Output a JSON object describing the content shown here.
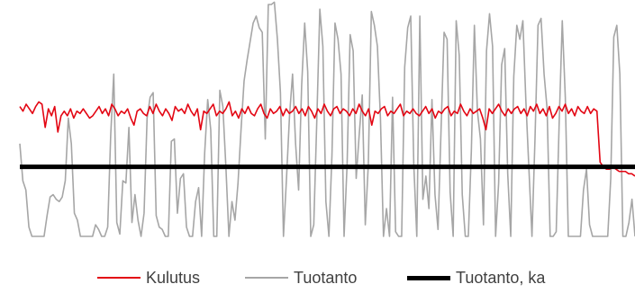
{
  "chart_data": {
    "type": "line",
    "title": "",
    "xlabel": "",
    "ylabel": "",
    "grid": false,
    "legend_position": "bottom",
    "ylim": [
      0,
      100
    ],
    "series": [
      {
        "name": "Kulutus",
        "color": "#e30613",
        "values": [
          56,
          54,
          57,
          55,
          53,
          56,
          58,
          57,
          47,
          55,
          52,
          56,
          45,
          52,
          54,
          52,
          55,
          51,
          54,
          53,
          55,
          53,
          51,
          52,
          54,
          56,
          53,
          55,
          52,
          57,
          55,
          52,
          54,
          53,
          55,
          51,
          48,
          54,
          55,
          53,
          52,
          56,
          53,
          57,
          54,
          52,
          55,
          53,
          50,
          56,
          54,
          55,
          53,
          57,
          54,
          52,
          55,
          46,
          54,
          53,
          55,
          57,
          52,
          54,
          53,
          55,
          58,
          52,
          54,
          51,
          55,
          53,
          56,
          53,
          52,
          55,
          57,
          53,
          51,
          55,
          53,
          54,
          56,
          52,
          55,
          53,
          54,
          56,
          53,
          55,
          52,
          56,
          54,
          51,
          55,
          53,
          57,
          54,
          52,
          55,
          56,
          53,
          55,
          54,
          52,
          55,
          53,
          57,
          54,
          52,
          55,
          48,
          54,
          53,
          55,
          56,
          52,
          54,
          53,
          55,
          57,
          52,
          54,
          53,
          55,
          53,
          52,
          54,
          56,
          53,
          55,
          51,
          54,
          53,
          55,
          56,
          52,
          54,
          53,
          57,
          54,
          52,
          55,
          53,
          54,
          55,
          51,
          46,
          55,
          53,
          55,
          57,
          54,
          52,
          55,
          53,
          55,
          56,
          53,
          55,
          52,
          56,
          54,
          57,
          53,
          55,
          52,
          56,
          51,
          53,
          56,
          54,
          57,
          53,
          55,
          52,
          56,
          54,
          53,
          56,
          53,
          55,
          54,
          32,
          30,
          29,
          29,
          30,
          29,
          28,
          28,
          28,
          27,
          27,
          26
        ]
      },
      {
        "name": "Tuotanto",
        "color": "#a6a6a6",
        "values": [
          40,
          24,
          20,
          4,
          0,
          0,
          0,
          0,
          0,
          9,
          17,
          18,
          16,
          15,
          17,
          24,
          51,
          40,
          10,
          7,
          0,
          0,
          0,
          0,
          0,
          5,
          3,
          0,
          0,
          4,
          44,
          70,
          6,
          1,
          24,
          23,
          47,
          6,
          18,
          7,
          0,
          10,
          51,
          60,
          62,
          9,
          4,
          3,
          0,
          0,
          41,
          42,
          10,
          25,
          27,
          4,
          0,
          0,
          15,
          21,
          0,
          36,
          59,
          46,
          0,
          0,
          63,
          56,
          30,
          0,
          15,
          7,
          23,
          46,
          67,
          76,
          84,
          92,
          95,
          90,
          88,
          42,
          100,
          100,
          101,
          85,
          62,
          0,
          25,
          52,
          70,
          40,
          20,
          65,
          92,
          71,
          0,
          5,
          50,
          98,
          82,
          15,
          0,
          35,
          92,
          85,
          70,
          0,
          31,
          87,
          80,
          25,
          44,
          61,
          5,
          31,
          97,
          91,
          82,
          51,
          0,
          12,
          0,
          60,
          2,
          0,
          0,
          73,
          90,
          95,
          31,
          0,
          95,
          16,
          26,
          12,
          59,
          18,
          3,
          46,
          88,
          85,
          19,
          0,
          93,
          78,
          18,
          0,
          0,
          37,
          91,
          54,
          42,
          5,
          80,
          96,
          82,
          0,
          23,
          74,
          81,
          27,
          0,
          69,
          91,
          85,
          93,
          58,
          29,
          0,
          42,
          91,
          94,
          70,
          55,
          0,
          0,
          2,
          50,
          93,
          60,
          0,
          0,
          0,
          0,
          0,
          20,
          29,
          5,
          0,
          0,
          0,
          0,
          0,
          0,
          25,
          86,
          91,
          70,
          0,
          0,
          6,
          16,
          0
        ]
      },
      {
        "name": "Tuotanto, ka",
        "color": "#000000",
        "values": [
          30,
          30,
          30,
          30,
          30,
          30,
          30,
          30,
          30,
          30,
          30,
          30,
          30,
          30,
          30,
          30,
          30,
          30,
          30,
          30,
          30,
          30,
          30,
          30,
          30,
          30,
          30,
          30,
          30,
          30,
          30,
          30,
          30,
          30,
          30,
          30,
          30,
          30,
          30,
          30,
          30,
          30,
          30,
          30,
          30,
          30,
          30,
          30,
          30,
          30,
          30,
          30,
          30,
          30,
          30,
          30,
          30,
          30,
          30,
          30,
          30,
          30,
          30,
          30,
          30,
          30,
          30,
          30,
          30,
          30,
          30,
          30,
          30,
          30,
          30,
          30,
          30,
          30,
          30,
          30,
          30,
          30,
          30,
          30,
          30,
          30,
          30,
          30,
          30,
          30,
          30,
          30,
          30,
          30,
          30,
          30,
          30,
          30,
          30,
          30,
          30,
          30,
          30,
          30,
          30,
          30,
          30,
          30,
          30,
          30,
          30,
          30,
          30,
          30,
          30,
          30,
          30,
          30,
          30,
          30,
          30,
          30,
          30,
          30,
          30,
          30,
          30,
          30,
          30,
          30,
          30,
          30,
          30,
          30,
          30,
          30,
          30,
          30,
          30,
          30,
          30,
          30,
          30,
          30,
          30,
          30,
          30,
          30,
          30,
          30,
          30,
          30,
          30,
          30,
          30,
          30,
          30,
          30,
          30,
          30,
          30,
          30,
          30,
          30,
          30,
          30,
          30,
          30,
          30,
          30,
          30,
          30,
          30,
          30,
          30,
          30,
          30,
          30,
          30,
          30,
          30,
          30,
          30,
          30,
          30,
          30,
          30,
          30,
          30,
          30,
          30,
          30,
          30,
          30,
          30,
          30,
          30,
          30,
          30,
          30,
          30
        ]
      }
    ]
  }
}
